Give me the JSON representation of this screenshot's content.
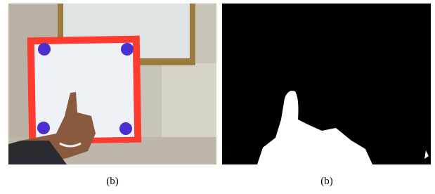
{
  "captions": [
    "(b)",
    "(b)"
  ]
}
